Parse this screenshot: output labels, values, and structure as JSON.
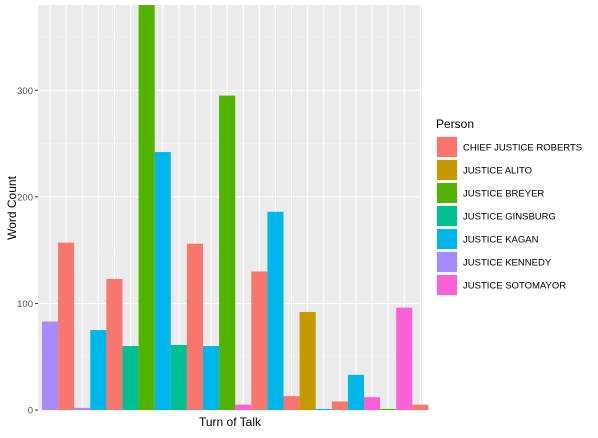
{
  "chart_data": {
    "type": "bar",
    "title": "",
    "xlabel": "Turn of Talk",
    "ylabel": "Word Count",
    "ylim": [
      0,
      380
    ],
    "yticks": [
      0,
      100,
      200,
      300
    ],
    "grid": true,
    "legend": {
      "title": "Person",
      "placement": "right",
      "entries": [
        {
          "name": "CHIEF JUSTICE ROBERTS",
          "color": "#F8766D"
        },
        {
          "name": "JUSTICE ALITO",
          "color": "#C49A00"
        },
        {
          "name": "JUSTICE BREYER",
          "color": "#53B400"
        },
        {
          "name": "JUSTICE GINSBURG",
          "color": "#00C094"
        },
        {
          "name": "JUSTICE KAGAN",
          "color": "#00B6EB"
        },
        {
          "name": "JUSTICE KENNEDY",
          "color": "#A58AFF"
        },
        {
          "name": "JUSTICE SOTOMAYOR",
          "color": "#FB61D7"
        }
      ]
    },
    "bars": [
      {
        "person": "JUSTICE KENNEDY",
        "value": 83
      },
      {
        "person": "CHIEF JUSTICE ROBERTS",
        "value": 157
      },
      {
        "person": "JUSTICE KENNEDY",
        "value": 2
      },
      {
        "person": "JUSTICE KAGAN",
        "value": 75
      },
      {
        "person": "CHIEF JUSTICE ROBERTS",
        "value": 123
      },
      {
        "person": "JUSTICE GINSBURG",
        "value": 60
      },
      {
        "person": "JUSTICE BREYER",
        "value": 380
      },
      {
        "person": "JUSTICE KAGAN",
        "value": 242
      },
      {
        "person": "JUSTICE GINSBURG",
        "value": 61
      },
      {
        "person": "CHIEF JUSTICE ROBERTS",
        "value": 156
      },
      {
        "person": "JUSTICE KAGAN",
        "value": 60
      },
      {
        "person": "JUSTICE BREYER",
        "value": 295
      },
      {
        "person": "JUSTICE SOTOMAYOR",
        "value": 5
      },
      {
        "person": "CHIEF JUSTICE ROBERTS",
        "value": 130
      },
      {
        "person": "JUSTICE KAGAN",
        "value": 186
      },
      {
        "person": "CHIEF JUSTICE ROBERTS",
        "value": 13
      },
      {
        "person": "JUSTICE ALITO",
        "value": 92
      },
      {
        "person": "JUSTICE KAGAN",
        "value": 1
      },
      {
        "person": "CHIEF JUSTICE ROBERTS",
        "value": 8
      },
      {
        "person": "JUSTICE KAGAN",
        "value": 33
      },
      {
        "person": "JUSTICE SOTOMAYOR",
        "value": 12
      },
      {
        "person": "JUSTICE BREYER",
        "value": 1
      },
      {
        "person": "JUSTICE SOTOMAYOR",
        "value": 96
      },
      {
        "person": "CHIEF JUSTICE ROBERTS",
        "value": 5
      }
    ]
  }
}
